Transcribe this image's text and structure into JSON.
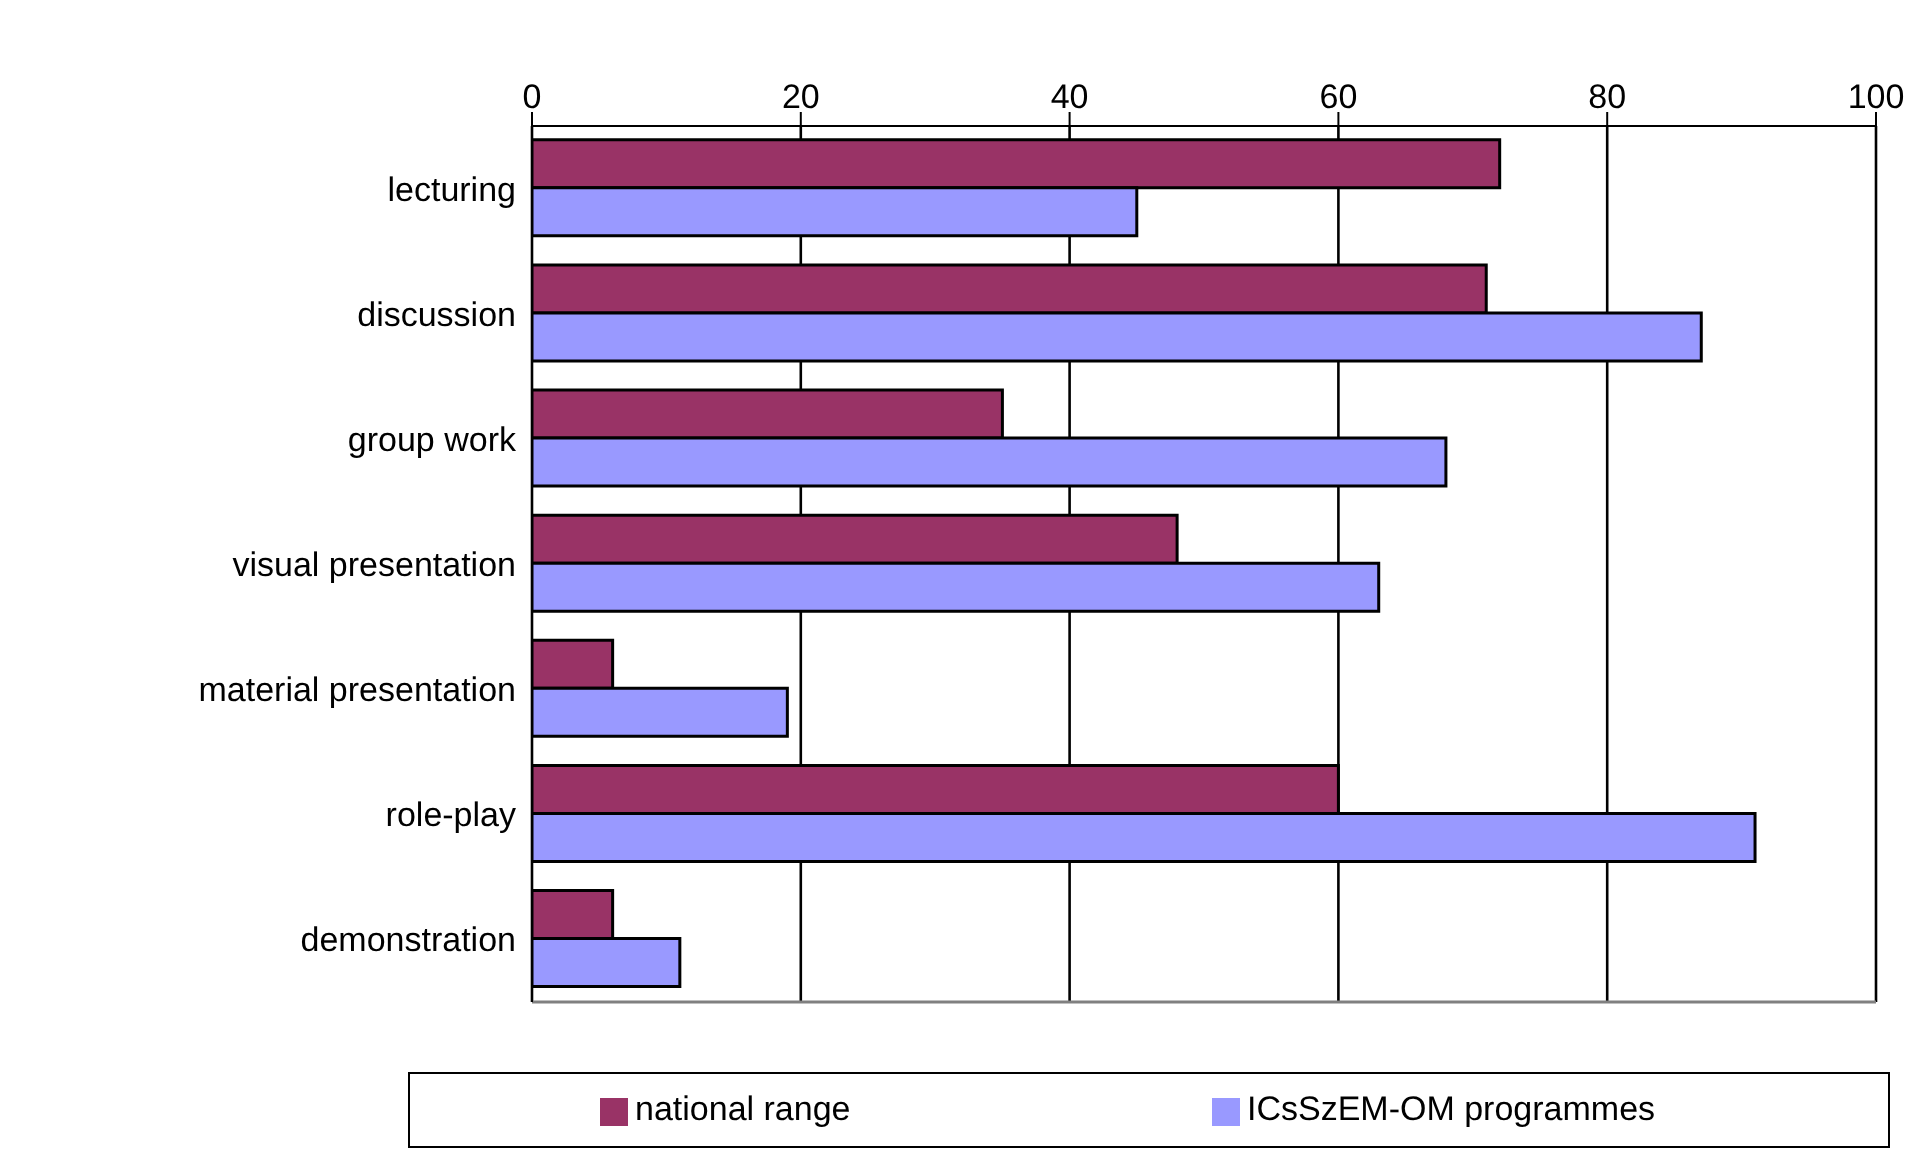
{
  "chart_data": {
    "type": "bar",
    "orientation": "horizontal",
    "categories": [
      "lecturing",
      "discussion",
      "group work",
      "visual presentation",
      "material presentation",
      "role-play",
      "demonstration"
    ],
    "series": [
      {
        "name": "national range",
        "color": "#993366",
        "values": [
          72,
          71,
          35,
          48,
          6,
          60,
          6
        ]
      },
      {
        "name": "ICsSzEM-OM programmes",
        "color": "#9999ff",
        "values": [
          45,
          87,
          68,
          63,
          19,
          91,
          11
        ]
      }
    ],
    "xlim": [
      0,
      100
    ],
    "xticks": [
      0,
      20,
      40,
      60,
      80,
      100
    ],
    "grid": "x",
    "legend": "bottom"
  }
}
